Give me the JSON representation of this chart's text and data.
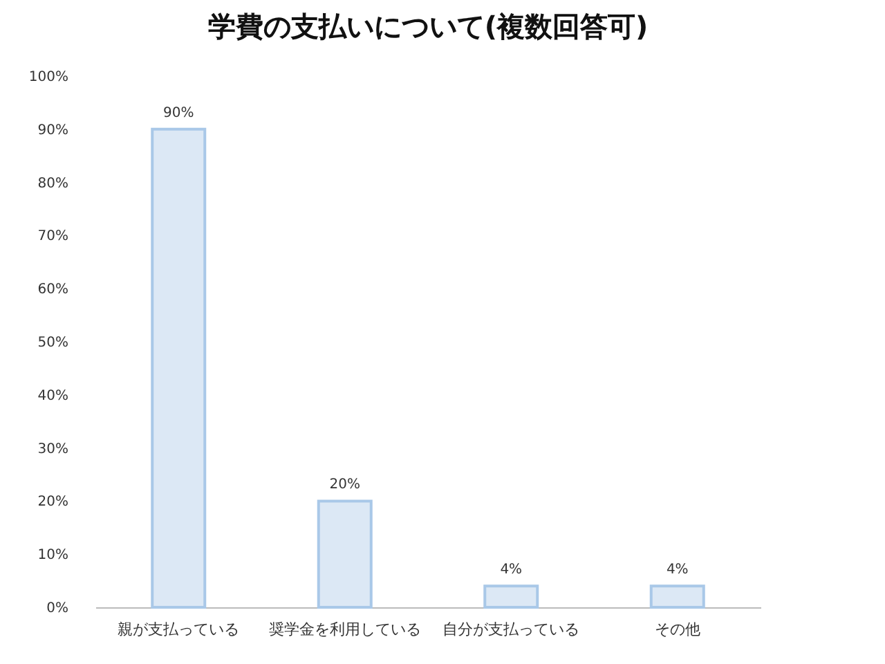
{
  "chart_data": {
    "type": "bar",
    "title": "学費の支払いについて(複数回答可)",
    "categories": [
      "親が支払っている",
      "奨学金を利用している",
      "自分が支払っている",
      "その他"
    ],
    "values": [
      90,
      20,
      4,
      4
    ],
    "value_labels": [
      "90%",
      "20%",
      "4%",
      "4%"
    ],
    "color": "#dce8f5",
    "ylim": [
      0,
      100
    ],
    "yticks": [
      {
        "value": 0,
        "label": "0%"
      },
      {
        "value": 10,
        "label": "10%"
      },
      {
        "value": 20,
        "label": "20%"
      },
      {
        "value": 30,
        "label": "30%"
      },
      {
        "value": 40,
        "label": "40%"
      },
      {
        "value": 50,
        "label": "50%"
      },
      {
        "value": 60,
        "label": "60%"
      },
      {
        "value": 70,
        "label": "70%"
      },
      {
        "value": 80,
        "label": "80%"
      },
      {
        "value": 90,
        "label": "90%"
      },
      {
        "value": 100,
        "label": "100%"
      }
    ],
    "grid": false
  }
}
